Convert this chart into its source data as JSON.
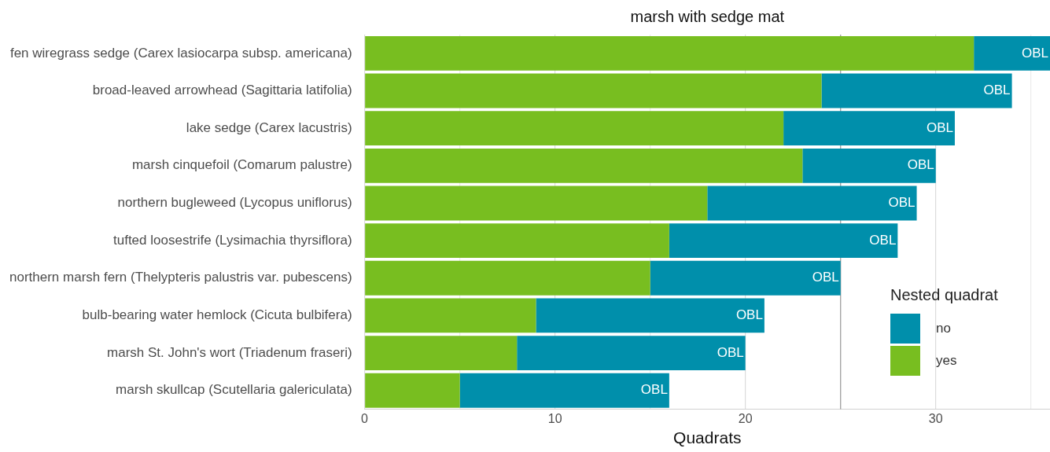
{
  "chart_data": {
    "type": "bar",
    "orientation": "horizontal",
    "stacked": true,
    "title": "marsh with sedge mat",
    "xlabel": "Quadrats",
    "legend_title": "Nested quadrat",
    "categories": [
      "fen wiregrass sedge (Carex lasiocarpa subsp. americana)",
      "broad-leaved arrowhead (Sagittaria latifolia)",
      "lake sedge (Carex lacustris)",
      "marsh cinquefoil (Comarum palustre)",
      "northern bugleweed (Lycopus uniflorus)",
      "tufted loosestrife (Lysimachia thyrsiflora)",
      "northern marsh fern (Thelypteris palustris var. pubescens)",
      "bulb-bearing water hemlock (Cicuta bulbifera)",
      "marsh St. John's wort (Triadenum fraseri)",
      "marsh skullcap (Scutellaria galericulata)"
    ],
    "series": [
      {
        "name": "yes",
        "color": "#78be20",
        "values": [
          32,
          24,
          22,
          23,
          18,
          16,
          15,
          9,
          8,
          5
        ]
      },
      {
        "name": "no",
        "color": "#008fab",
        "values": [
          4,
          10,
          9,
          7,
          11,
          12,
          10,
          12,
          12,
          11
        ]
      }
    ],
    "xlim": [
      0,
      36
    ],
    "xticks": [
      0,
      {
        "value": 5,
        "label": null
      },
      10,
      {
        "value": 15,
        "label": null
      },
      20,
      {
        "value": 25,
        "label": null
      },
      30,
      {
        "value": 35,
        "label": null
      }
    ],
    "ref_lines": [
      {
        "axis": "x",
        "value": 25,
        "color": "#9a9a9a"
      }
    ],
    "annotations": [
      {
        "text": "OBL",
        "x": 36,
        "y": "fen wiregrass sedge (Carex lasiocarpa subsp. americana)"
      },
      {
        "text": "OBL",
        "x": 34,
        "y": "broad-leaved arrowhead (Sagittaria latifolia)"
      },
      {
        "text": "OBL",
        "x": 31,
        "y": "lake sedge (Carex lacustris)"
      },
      {
        "text": "OBL",
        "x": 30,
        "y": "marsh cinquefoil (Comarum palustre)"
      },
      {
        "text": "OBL",
        "x": 29,
        "y": "northern bugleweed (Lycopus uniflorus)"
      },
      {
        "text": "OBL",
        "x": 28,
        "y": "tufted loosestrife (Lysimachia thyrsiflora)"
      },
      {
        "text": "OBL",
        "x": 25,
        "y": "northern marsh fern (Thelypteris palustris var. pubescens)"
      },
      {
        "text": "OBL",
        "x": 21,
        "y": "bulb-bearing water hemlock (Cicuta bulbifera)"
      },
      {
        "text": "OBL",
        "x": 20,
        "y": "marsh St. John's wort (Triadenum fraseri)"
      },
      {
        "text": "OBL",
        "x": 16,
        "y": "marsh skullcap (Scutellaria galericulata)"
      }
    ],
    "grid": "x",
    "legend": "right"
  }
}
